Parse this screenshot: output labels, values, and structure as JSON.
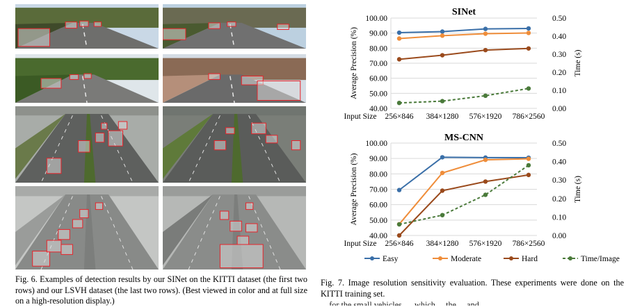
{
  "left_figure": {
    "thumbnails": [
      {
        "name": "kitti-highway-cars"
      },
      {
        "name": "kitti-urban-road"
      },
      {
        "name": "kitti-highway-trees"
      },
      {
        "name": "kitti-residential-street"
      },
      {
        "name": "lsvh-highway-overpass"
      },
      {
        "name": "lsvh-highway-median"
      },
      {
        "name": "lsvh-foggy-highway"
      },
      {
        "name": "lsvh-highway-bridge"
      }
    ],
    "caption": "Fig. 6.  Examples of detection results by our SINet on the KITTI dataset (the first two rows) and our LSVH dataset (the last two rows). (Best viewed in color and at full size on a high-resolution display.)"
  },
  "right_figure": {
    "caption": "Fig. 7.  Image resolution sensitivity evaluation. These experiments were done on the KITTI training set.",
    "caption_tail": "... for the small vehicles, ... which ... the ... and ..."
  },
  "chart_data": [
    {
      "type": "line",
      "title": "SINet",
      "xlabel": "Input Size",
      "ylabel": "Average Precision (%)",
      "y2label": "Time (s)",
      "categories": [
        "256×846",
        "384×1280",
        "576×1920",
        "786×2560"
      ],
      "ylim": [
        40,
        100
      ],
      "yticks": [
        "40.00",
        "50.00",
        "60.00",
        "70.00",
        "80.00",
        "90.00",
        "100.00"
      ],
      "y2lim": [
        0,
        0.5
      ],
      "y2ticks": [
        "0.00",
        "0.10",
        "0.20",
        "0.30",
        "0.40",
        "0.50"
      ],
      "grid": true,
      "series": [
        {
          "name": "Easy",
          "axis": "left",
          "values": [
            90.3,
            91.0,
            92.8,
            93.1
          ],
          "color": "#3a6fa8",
          "dash": false
        },
        {
          "name": "Moderate",
          "axis": "left",
          "values": [
            86.4,
            88.3,
            89.6,
            90.1
          ],
          "color": "#ef8d3a",
          "dash": false
        },
        {
          "name": "Hard",
          "axis": "left",
          "values": [
            72.6,
            75.3,
            78.7,
            79.8
          ],
          "color": "#9a4a1c",
          "dash": false
        },
        {
          "name": "Time/Image",
          "axis": "right",
          "values": [
            0.03,
            0.04,
            0.07,
            0.11
          ],
          "color": "#4a7a3a",
          "dash": true
        }
      ]
    },
    {
      "type": "line",
      "title": "MS-CNN",
      "xlabel": "Input Size",
      "ylabel": "Average Precision (%)",
      "y2label": "Time (s)",
      "categories": [
        "256×846",
        "384×1280",
        "576×1920",
        "786×2560"
      ],
      "ylim": [
        40,
        100
      ],
      "yticks": [
        "40.00",
        "50.00",
        "60.00",
        "70.00",
        "80.00",
        "90.00",
        "100.00"
      ],
      "y2lim": [
        0,
        0.5
      ],
      "y2ticks": [
        "0.00",
        "0.10",
        "0.20",
        "0.30",
        "0.40",
        "0.50"
      ],
      "grid": true,
      "series": [
        {
          "name": "Easy",
          "axis": "left",
          "values": [
            69.5,
            90.8,
            90.6,
            90.5
          ],
          "color": "#3a6fa8",
          "dash": false
        },
        {
          "name": "Moderate",
          "axis": "left",
          "values": [
            47.3,
            80.6,
            89.1,
            89.8
          ],
          "color": "#ef8d3a",
          "dash": false
        },
        {
          "name": "Hard",
          "axis": "left",
          "values": [
            40.0,
            69.1,
            75.0,
            79.3
          ],
          "color": "#9a4a1c",
          "dash": false
        },
        {
          "name": "Time/Image",
          "axis": "right",
          "values": [
            0.06,
            0.11,
            0.22,
            0.38
          ],
          "color": "#4a7a3a",
          "dash": true
        }
      ]
    }
  ],
  "legend": {
    "placement": "bottom",
    "entries": [
      "Easy",
      "Moderate",
      "Hard",
      "Time/Image"
    ]
  }
}
